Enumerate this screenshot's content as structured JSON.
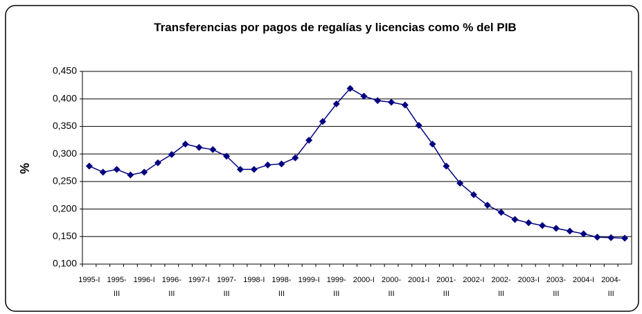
{
  "chart_data": {
    "type": "line",
    "title": "Transferencias por pagos de regalías y licencias como % del PIB",
    "y_label": "%",
    "categories": [
      "1995-I",
      null,
      "1995-III",
      null,
      "1996-I",
      null,
      "1996-III",
      null,
      "1997-I",
      null,
      "1997-III",
      null,
      "1998-I",
      null,
      "1998-III",
      null,
      "1999-I",
      null,
      "1999-III",
      null,
      "2000-I",
      null,
      "2000-III",
      null,
      "2001-I",
      null,
      "2001-III",
      null,
      "2002-I",
      null,
      "2002-III",
      null,
      "2003-I",
      null,
      "2003-III",
      null,
      "2004-I",
      null,
      "2004-III",
      null
    ],
    "values": [
      0.278,
      0.267,
      0.272,
      0.262,
      0.267,
      0.284,
      0.299,
      0.318,
      0.312,
      0.308,
      0.296,
      0.272,
      0.272,
      0.28,
      0.282,
      0.293,
      0.325,
      0.359,
      0.391,
      0.419,
      0.405,
      0.397,
      0.394,
      0.389,
      0.352,
      0.318,
      0.278,
      0.247,
      0.226,
      0.207,
      0.194,
      0.181,
      0.175,
      0.17,
      0.165,
      0.16,
      0.155,
      0.149,
      0.148,
      0.147
    ],
    "color": "#000080",
    "ylim": [
      0.1,
      0.45
    ],
    "yticks": [
      {
        "value": 0.1,
        "label": "0,100"
      },
      {
        "value": 0.15,
        "label": "0,150"
      },
      {
        "value": 0.2,
        "label": "0,200"
      },
      {
        "value": 0.25,
        "label": "0,250"
      },
      {
        "value": 0.3,
        "label": "0,300"
      },
      {
        "value": 0.35,
        "label": "0,350"
      },
      {
        "value": 0.4,
        "label": "0,400"
      },
      {
        "value": 0.45,
        "label": "0,450"
      }
    ],
    "grid": true
  }
}
